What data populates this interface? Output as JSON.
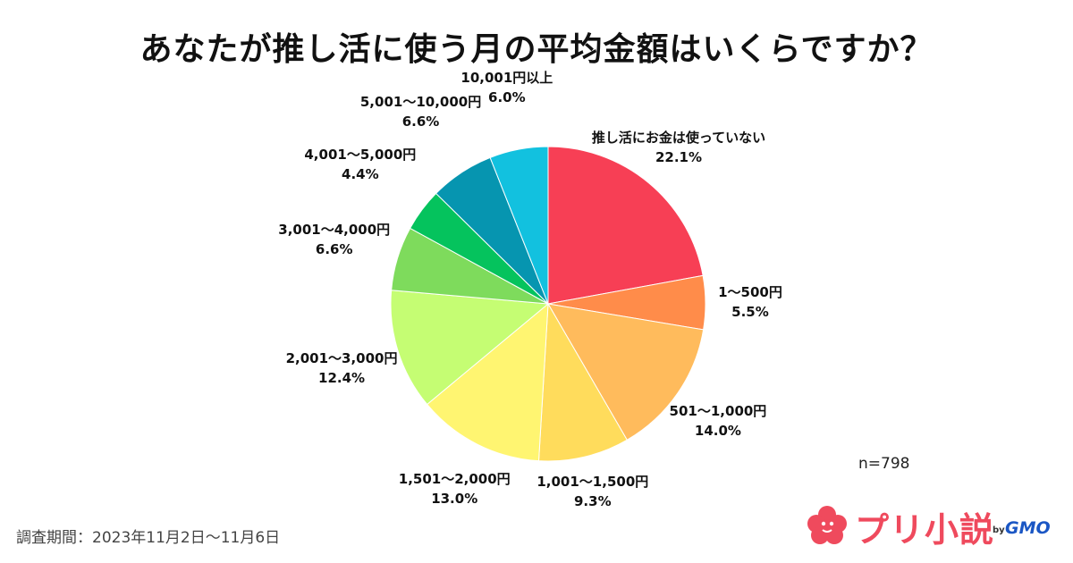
{
  "title": "あなたが推し活に使う月の平均金額はいくらですか？",
  "sample_size": "n=798",
  "survey_period": "調査期間：2023年11月2日〜11月6日",
  "brand": {
    "name": "プリ小説",
    "by": "by",
    "company": "GMO",
    "color": "#ef4a5d"
  },
  "chart_data": {
    "type": "pie",
    "title": "あなたが推し活に使う月の平均金額はいくらですか？",
    "start": "12 o'clock, clockwise",
    "slices": [
      {
        "label": "推し活にお金は使っていない",
        "value": 22.1,
        "display": "22.1%",
        "color": "#f73f55"
      },
      {
        "label": "1〜500円",
        "value": 5.5,
        "display": "5.5%",
        "color": "#ff8c4a"
      },
      {
        "label": "501〜1,000円",
        "value": 14.0,
        "display": "14.0%",
        "color": "#ffbb5c"
      },
      {
        "label": "1,001〜1,500円",
        "value": 9.3,
        "display": "9.3%",
        "color": "#ffdc5c"
      },
      {
        "label": "1,501〜2,000円",
        "value": 13.0,
        "display": "13.0%",
        "color": "#fff571"
      },
      {
        "label": "2,001〜3,000円",
        "value": 12.4,
        "display": "12.4%",
        "color": "#c5fd73"
      },
      {
        "label": "3,001〜4,000円",
        "value": 6.6,
        "display": "6.6%",
        "color": "#7edb5c"
      },
      {
        "label": "4,001〜5,000円",
        "value": 4.4,
        "display": "4.4%",
        "color": "#05c35d"
      },
      {
        "label": "5,001〜10,000円",
        "value": 6.6,
        "display": "6.6%",
        "color": "#0695b0"
      },
      {
        "label": "10,001円以上",
        "value": 6.0,
        "display": "6.0%",
        "color": "#12c1df"
      }
    ]
  }
}
